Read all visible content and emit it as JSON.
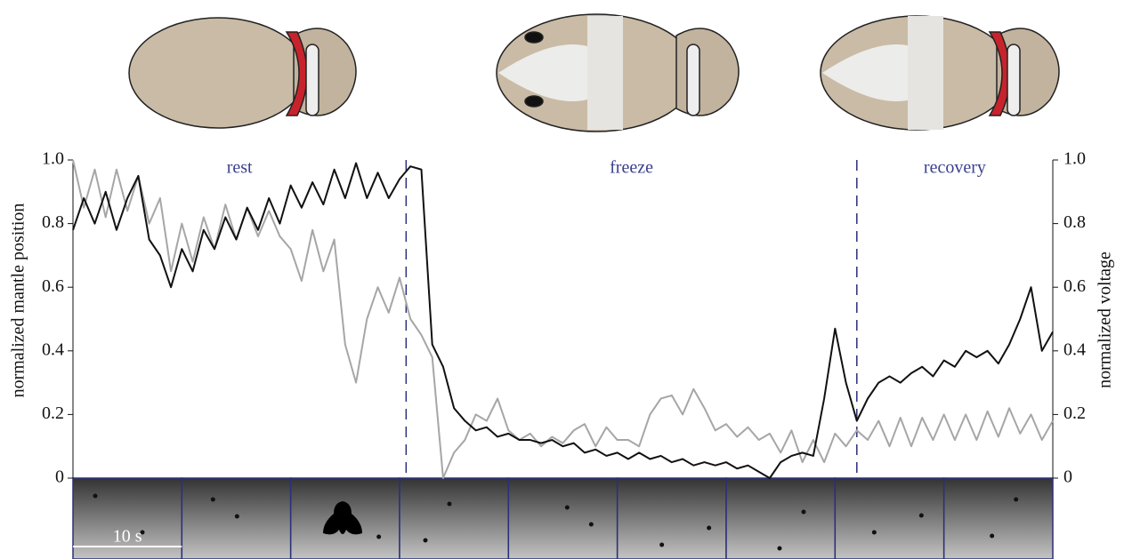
{
  "chart_data": {
    "type": "line",
    "ylabel": "normalized mantle position",
    "y2label": "normalized voltage",
    "phases": [
      "rest",
      "freeze",
      "recovery"
    ],
    "phase_boundaries": [
      30.6,
      72
    ],
    "scale_bar_label": "10 s",
    "x": [
      0,
      1,
      2,
      3,
      4,
      5,
      6,
      7,
      8,
      9,
      10,
      11,
      12,
      13,
      14,
      15,
      16,
      17,
      18,
      19,
      20,
      21,
      22,
      23,
      24,
      25,
      26,
      27,
      28,
      29,
      30,
      31,
      32,
      33,
      34,
      35,
      36,
      37,
      38,
      39,
      40,
      41,
      42,
      43,
      44,
      45,
      46,
      47,
      48,
      49,
      50,
      51,
      52,
      53,
      54,
      55,
      56,
      57,
      58,
      59,
      60,
      61,
      62,
      63,
      64,
      65,
      66,
      67,
      68,
      69,
      70,
      71,
      72,
      73,
      74,
      75,
      76,
      77,
      78,
      79,
      80,
      81,
      82,
      83,
      84,
      85,
      86,
      87,
      88,
      89,
      90
    ],
    "xlim": [
      0,
      90
    ],
    "series": [
      {
        "color": "#111111",
        "values": [
          0.78,
          0.88,
          0.8,
          0.9,
          0.78,
          0.88,
          0.95,
          0.75,
          0.7,
          0.6,
          0.72,
          0.65,
          0.78,
          0.72,
          0.82,
          0.75,
          0.85,
          0.78,
          0.88,
          0.8,
          0.92,
          0.85,
          0.93,
          0.86,
          0.97,
          0.88,
          0.99,
          0.88,
          0.96,
          0.88,
          0.94,
          0.98,
          0.97,
          0.42,
          0.35,
          0.22,
          0.18,
          0.15,
          0.16,
          0.13,
          0.14,
          0.12,
          0.12,
          0.11,
          0.12,
          0.1,
          0.11,
          0.08,
          0.09,
          0.07,
          0.08,
          0.06,
          0.08,
          0.06,
          0.07,
          0.05,
          0.06,
          0.04,
          0.05,
          0.04,
          0.05,
          0.03,
          0.04,
          0.02,
          0.0,
          0.05,
          0.07,
          0.08,
          0.07,
          0.25,
          0.47,
          0.3,
          0.18,
          0.25,
          0.3,
          0.32,
          0.3,
          0.33,
          0.35,
          0.32,
          0.37,
          0.35,
          0.4,
          0.38,
          0.4,
          0.36,
          0.42,
          0.5,
          0.6,
          0.4,
          0.46
        ]
      },
      {
        "color": "#a6a6a6",
        "axis": "y2",
        "values": [
          1.0,
          0.85,
          0.97,
          0.82,
          0.97,
          0.84,
          0.95,
          0.8,
          0.88,
          0.65,
          0.8,
          0.68,
          0.82,
          0.72,
          0.86,
          0.75,
          0.85,
          0.76,
          0.84,
          0.76,
          0.72,
          0.62,
          0.78,
          0.65,
          0.75,
          0.42,
          0.3,
          0.5,
          0.6,
          0.52,
          0.63,
          0.5,
          0.45,
          0.38,
          0.0,
          0.08,
          0.12,
          0.2,
          0.18,
          0.25,
          0.15,
          0.12,
          0.14,
          0.1,
          0.13,
          0.11,
          0.15,
          0.17,
          0.1,
          0.16,
          0.12,
          0.12,
          0.1,
          0.2,
          0.25,
          0.26,
          0.2,
          0.28,
          0.22,
          0.15,
          0.17,
          0.13,
          0.16,
          0.12,
          0.14,
          0.08,
          0.15,
          0.05,
          0.12,
          0.05,
          0.14,
          0.1,
          0.15,
          0.12,
          0.18,
          0.1,
          0.19,
          0.1,
          0.19,
          0.12,
          0.2,
          0.12,
          0.2,
          0.12,
          0.21,
          0.13,
          0.22,
          0.14,
          0.2,
          0.12,
          0.18
        ]
      }
    ],
    "ylim": [
      0,
      1
    ],
    "yticks": [
      0,
      0.2,
      0.4,
      0.6,
      0.8,
      {
        "value": 1,
        "label": "1.0"
      }
    ],
    "y2lim": [
      0,
      1
    ],
    "y2ticks": [
      0,
      0.2,
      0.4,
      0.6,
      0.8,
      {
        "value": 1,
        "label": "1.0"
      }
    ]
  }
}
